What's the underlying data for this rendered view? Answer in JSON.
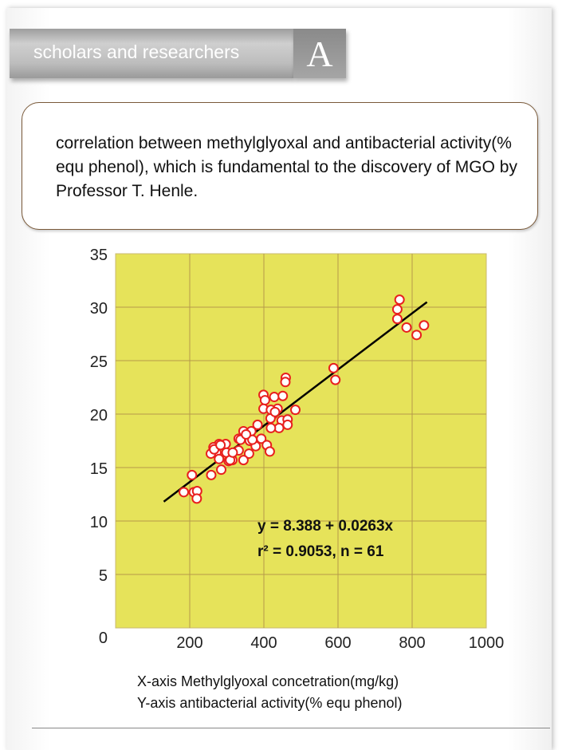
{
  "header": {
    "title": "scholars and researchers",
    "letter": "A"
  },
  "intro": {
    "text": "correlation between methylglyoxal and antibacterial activity(% equ phenol), which is fundamental to the discovery of MGO by Professor T. Henle."
  },
  "captions": {
    "x": "X-axis  Methylglyoxal concetration(mg/kg)",
    "y": "Y-axis  antibacterial activity(% equ phenol)"
  },
  "chart_data": {
    "type": "scatter",
    "xlabel": "Methylglyoxal concetration(mg/kg)",
    "ylabel": "antibacterial activity(% equ phenol)",
    "xlim": [
      0,
      1000
    ],
    "ylim": [
      0,
      35
    ],
    "xticks": [
      "200",
      "400",
      "600",
      "800",
      "1000"
    ],
    "yticks": [
      "0",
      "5",
      "10",
      "15",
      "20",
      "25",
      "30",
      "35"
    ],
    "grid": true,
    "colors": {
      "plot_bg": "#e6e35a",
      "grid": "#b59a4a",
      "marker_edge": "#e8201e",
      "marker_fill": "#ffffff",
      "line": "#000000"
    },
    "regression": {
      "intercept": 8.388,
      "slope": 0.0263,
      "x_range": [
        130,
        840
      ],
      "equation": "y = 8.388 + 0.0263x",
      "r2_label": "r² = 0.9053,  n = 61"
    },
    "points": [
      [
        766,
        30.7
      ],
      [
        760,
        29.8
      ],
      [
        760,
        28.9
      ],
      [
        785,
        28.1
      ],
      [
        812,
        27.4
      ],
      [
        832,
        28.3
      ],
      [
        588,
        24.3
      ],
      [
        593,
        23.2
      ],
      [
        459,
        23.4
      ],
      [
        458,
        23.0
      ],
      [
        399,
        21.8
      ],
      [
        403,
        21.3
      ],
      [
        428,
        21.6
      ],
      [
        451,
        21.7
      ],
      [
        399,
        20.5
      ],
      [
        437,
        20.5
      ],
      [
        485,
        20.4
      ],
      [
        425,
        20.0
      ],
      [
        418,
        19.6
      ],
      [
        448,
        19.4
      ],
      [
        464,
        19.5
      ],
      [
        464,
        19.0
      ],
      [
        441,
        18.7
      ],
      [
        419,
        18.7
      ],
      [
        383,
        19.0
      ],
      [
        366,
        18.4
      ],
      [
        345,
        18.4
      ],
      [
        332,
        17.7
      ],
      [
        362,
        17.5
      ],
      [
        393,
        17.7
      ],
      [
        378,
        17.0
      ],
      [
        408,
        17.1
      ],
      [
        416,
        16.5
      ],
      [
        360,
        16.3
      ],
      [
        345,
        15.7
      ],
      [
        332,
        16.6
      ],
      [
        315,
        15.7
      ],
      [
        305,
        15.6
      ],
      [
        297,
        17.2
      ],
      [
        279,
        17.2
      ],
      [
        264,
        16.9
      ],
      [
        272,
        16.4
      ],
      [
        257,
        16.3
      ],
      [
        279,
        15.8
      ],
      [
        299,
        16.4
      ],
      [
        285,
        14.8
      ],
      [
        258,
        14.3
      ],
      [
        206,
        14.3
      ],
      [
        184,
        12.7
      ],
      [
        211,
        12.7
      ],
      [
        220,
        12.8
      ],
      [
        219,
        12.1
      ],
      [
        266,
        16.7
      ],
      [
        309,
        15.7
      ],
      [
        369,
        17.6
      ],
      [
        283,
        17.1
      ],
      [
        419,
        20.4
      ],
      [
        430,
        20.2
      ],
      [
        337,
        17.6
      ],
      [
        352,
        18.1
      ],
      [
        316,
        16.4
      ]
    ]
  }
}
